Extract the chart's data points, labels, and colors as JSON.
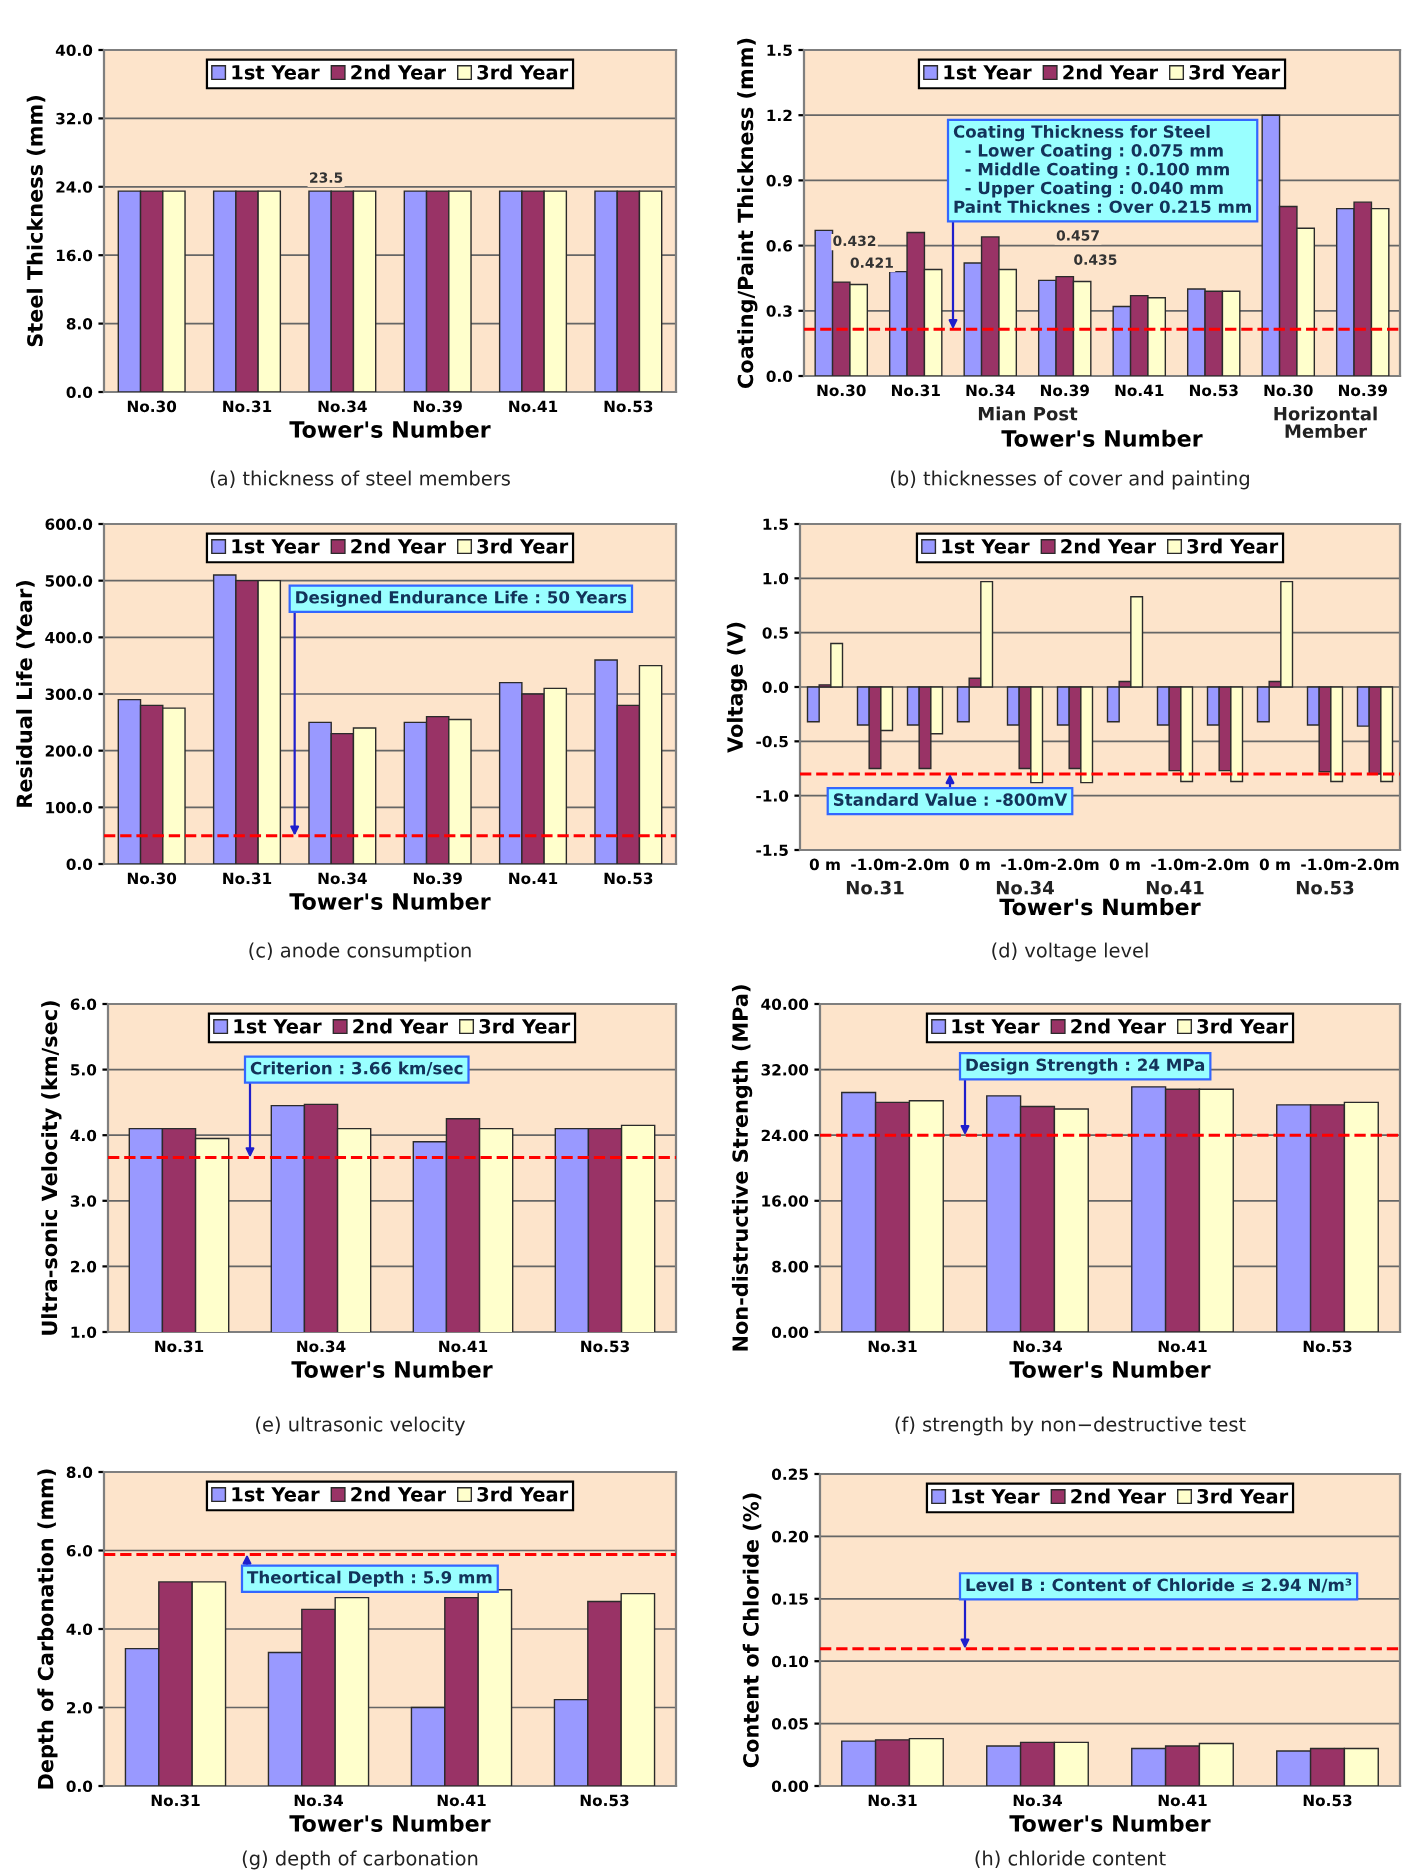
{
  "chart_data": [
    {
      "type": "bar",
      "title": "(a) thickness of steel members",
      "xlabel": "Tower's Number",
      "ylabel": "Steel Thickness (mm)",
      "categories": [
        "No.30",
        "No.31",
        "No.34",
        "No.39",
        "No.41",
        "No.53"
      ],
      "series": [
        {
          "name": "1st Year",
          "color": "#9999ff",
          "values": [
            23.5,
            23.5,
            23.5,
            23.5,
            23.5,
            23.5
          ],
          "value_labels": [
            null,
            null,
            "23.5",
            null,
            null,
            null
          ]
        },
        {
          "name": "2nd Year",
          "color": "#993366",
          "values": [
            23.5,
            23.5,
            23.5,
            23.5,
            23.5,
            23.5
          ]
        },
        {
          "name": "3rd Year",
          "color": "#ffffcc",
          "values": [
            23.5,
            23.5,
            23.5,
            23.5,
            23.5,
            23.5
          ]
        }
      ],
      "ylim": [
        0,
        40
      ],
      "yticks": [
        {
          "value": 0,
          "label": "0.0"
        },
        {
          "value": 8,
          "label": "8.0"
        },
        {
          "value": 16,
          "label": "16.0"
        },
        {
          "value": 24,
          "label": "24.0"
        },
        {
          "value": 32,
          "label": "32.0"
        },
        {
          "value": 40,
          "label": "40.0"
        }
      ],
      "grid": "y",
      "legend": "top"
    },
    {
      "type": "bar",
      "title": "(b) thicknesses of cover and painting",
      "xlabel": "Tower's Number",
      "ylabel": "Coating/Paint Thickness (mm)",
      "categories": [
        "No.30",
        "No.31",
        "No.34",
        "No.39",
        "No.41",
        "No.53",
        "No.30",
        "No.39"
      ],
      "series": [
        {
          "name": "1st Year",
          "color": "#9999ff",
          "values": [
            0.67,
            0.48,
            0.52,
            0.44,
            0.32,
            0.4,
            1.2,
            0.77
          ]
        },
        {
          "name": "2nd Year",
          "color": "#993366",
          "values": [
            0.432,
            0.66,
            0.64,
            0.457,
            0.37,
            0.39,
            0.78,
            0.8
          ],
          "value_labels": [
            "0.432",
            null,
            null,
            "0.457",
            null,
            null,
            null,
            null
          ]
        },
        {
          "name": "3rd Year",
          "color": "#ffffcc",
          "values": [
            0.421,
            0.49,
            0.49,
            0.435,
            0.36,
            0.39,
            0.68,
            0.77
          ],
          "value_labels": [
            "0.421",
            null,
            null,
            "0.435",
            null,
            null,
            null,
            null
          ]
        }
      ],
      "ylim": [
        0,
        1.5
      ],
      "yticks": [
        {
          "value": 0,
          "label": "0.0"
        },
        0.3,
        0.6,
        0.9,
        1.2,
        1.5
      ],
      "grid": "y",
      "legend": "top",
      "annotations": [
        "Mian Post",
        "Horizontal\nMember"
      ],
      "ref_lines": [
        {
          "axis": "y",
          "value": 0.215,
          "label": "Coating Thickness for Steel\n  - Lower Coating : 0.075 mm\n  - Middle Coating : 0.100 mm\n  - Upper Coating : 0.040 mm\nPaint Thicknes : Over 0.215 mm",
          "color": "#ff0000",
          "line_style": "dashed"
        }
      ]
    },
    {
      "type": "bar",
      "title": "(c) anode consumption",
      "xlabel": "Tower's Number",
      "ylabel": "Residual Life (Year)",
      "categories": [
        "No.30",
        "No.31",
        "No.34",
        "No.39",
        "No.41",
        "No.53"
      ],
      "series": [
        {
          "name": "1st Year",
          "color": "#9999ff",
          "values": [
            290,
            510,
            250,
            250,
            320,
            360
          ]
        },
        {
          "name": "2nd Year",
          "color": "#993366",
          "values": [
            280,
            500,
            230,
            260,
            300,
            280
          ]
        },
        {
          "name": "3rd Year",
          "color": "#ffffcc",
          "values": [
            275,
            500,
            240,
            255,
            310,
            350
          ]
        }
      ],
      "ylim": [
        0,
        600
      ],
      "yticks": [
        {
          "value": 0,
          "label": "0.0"
        },
        {
          "value": 100,
          "label": "100.0"
        },
        {
          "value": 200,
          "label": "200.0"
        },
        {
          "value": 300,
          "label": "300.0"
        },
        {
          "value": 400,
          "label": "400.0"
        },
        {
          "value": 500,
          "label": "500.0"
        },
        {
          "value": 600,
          "label": "600.0"
        }
      ],
      "grid": "y",
      "legend": "top",
      "ref_lines": [
        {
          "axis": "y",
          "value": 50,
          "label": "Designed Endurance Life : 50 Years",
          "color": "#ff0000",
          "line_style": "dashed"
        }
      ]
    },
    {
      "type": "bar",
      "title": "(d) voltage level",
      "xlabel": "Tower's Number",
      "ylabel": "Voltage (V)",
      "categories": [
        "0 m",
        "-1.0m",
        "-2.0m",
        "0 m",
        "-1.0m",
        "-2.0m",
        "0 m",
        "-1.0m",
        "-2.0m",
        "0 m",
        "-1.0m",
        "-2.0m"
      ],
      "series": [
        {
          "name": "1st Year",
          "color": "#9999ff",
          "values": [
            -0.32,
            -0.35,
            -0.35,
            -0.32,
            -0.35,
            -0.35,
            -0.32,
            -0.35,
            -0.35,
            -0.32,
            -0.35,
            -0.36
          ]
        },
        {
          "name": "2nd Year",
          "color": "#993366",
          "values": [
            0.02,
            -0.75,
            -0.75,
            0.08,
            -0.75,
            -0.75,
            0.05,
            -0.77,
            -0.77,
            0.05,
            -0.78,
            -0.8
          ]
        },
        {
          "name": "3rd Year",
          "color": "#ffffcc",
          "values": [
            0.4,
            -0.4,
            -0.43,
            0.97,
            -0.88,
            -0.88,
            0.83,
            -0.87,
            -0.87,
            0.97,
            -0.87,
            -0.87
          ]
        }
      ],
      "ylim": [
        -1.5,
        1.5
      ],
      "yticks": [
        {
          "value": -1.5,
          "label": "-1.5"
        },
        {
          "value": -1.0,
          "label": "-1.0"
        },
        {
          "value": -0.5,
          "label": "-0.5"
        },
        {
          "value": 0,
          "label": "0.0"
        },
        0.5,
        {
          "value": 1,
          "label": "1.0"
        },
        1.5
      ],
      "grid": "y",
      "legend": "top",
      "annotations": [
        "No.31",
        "No.34",
        "No.41",
        "No.53"
      ],
      "ref_lines": [
        {
          "axis": "y",
          "value": -0.8,
          "label": "Standard Value : -800mV",
          "color": "#ff0000",
          "line_style": "dashed"
        }
      ]
    },
    {
      "type": "bar",
      "title": "(e) ultrasonic velocity",
      "xlabel": "Tower's Number",
      "ylabel": "Ultra-sonic Velocity (km/sec)",
      "categories": [
        "No.31",
        "No.34",
        "No.41",
        "No.53"
      ],
      "series": [
        {
          "name": "1st Year",
          "color": "#9999ff",
          "values": [
            4.1,
            4.45,
            3.9,
            4.1
          ]
        },
        {
          "name": "2nd Year",
          "color": "#993366",
          "values": [
            4.1,
            4.47,
            4.25,
            4.1
          ]
        },
        {
          "name": "3rd Year",
          "color": "#ffffcc",
          "values": [
            3.95,
            4.1,
            4.1,
            4.15
          ]
        }
      ],
      "ylim": [
        1,
        6
      ],
      "yticks": [
        {
          "value": 1,
          "label": "1.0"
        },
        {
          "value": 2,
          "label": "2.0"
        },
        {
          "value": 3,
          "label": "3.0"
        },
        {
          "value": 4,
          "label": "4.0"
        },
        {
          "value": 5,
          "label": "5.0"
        },
        {
          "value": 6,
          "label": "6.0"
        }
      ],
      "grid": "y",
      "legend": "top",
      "ref_lines": [
        {
          "axis": "y",
          "value": 3.66,
          "label": "Criterion : 3.66 km/sec",
          "color": "#ff0000",
          "line_style": "dashed"
        }
      ]
    },
    {
      "type": "bar",
      "title": "(f) strength by non−destructive test",
      "xlabel": "Tower's Number",
      "ylabel": "Non-distructive Strength (MPa)",
      "categories": [
        "No.31",
        "No.34",
        "No.41",
        "No.53"
      ],
      "series": [
        {
          "name": "1st Year",
          "color": "#9999ff",
          "values": [
            29.2,
            28.8,
            29.9,
            27.7
          ]
        },
        {
          "name": "2nd Year",
          "color": "#993366",
          "values": [
            28.0,
            27.5,
            29.6,
            27.7
          ]
        },
        {
          "name": "3rd Year",
          "color": "#ffffcc",
          "values": [
            28.2,
            27.2,
            29.6,
            28.0
          ]
        }
      ],
      "ylim": [
        0,
        40
      ],
      "yticks": [
        {
          "value": 0,
          "label": "0.00"
        },
        {
          "value": 8,
          "label": "8.00"
        },
        {
          "value": 16,
          "label": "16.00"
        },
        {
          "value": 24,
          "label": "24.00"
        },
        {
          "value": 32,
          "label": "32.00"
        },
        {
          "value": 40,
          "label": "40.00"
        }
      ],
      "grid": "y",
      "legend": "top",
      "ref_lines": [
        {
          "axis": "y",
          "value": 24,
          "label": "Design Strength : 24 MPa",
          "color": "#ff0000",
          "line_style": "dashed"
        }
      ]
    },
    {
      "type": "bar",
      "title": "(g) depth of carbonation",
      "xlabel": "Tower's Number",
      "ylabel": "Depth of Carbonation (mm)",
      "categories": [
        "No.31",
        "No.34",
        "No.41",
        "No.53"
      ],
      "series": [
        {
          "name": "1st Year",
          "color": "#9999ff",
          "values": [
            3.5,
            3.4,
            2.0,
            2.2
          ]
        },
        {
          "name": "2nd Year",
          "color": "#993366",
          "values": [
            5.2,
            4.5,
            4.8,
            4.7
          ]
        },
        {
          "name": "3rd Year",
          "color": "#ffffcc",
          "values": [
            5.2,
            4.8,
            5.0,
            4.9
          ]
        }
      ],
      "ylim": [
        0,
        8
      ],
      "yticks": [
        {
          "value": 0,
          "label": "0.0"
        },
        {
          "value": 2,
          "label": "2.0"
        },
        {
          "value": 4,
          "label": "4.0"
        },
        {
          "value": 6,
          "label": "6.0"
        },
        {
          "value": 8,
          "label": "8.0"
        }
      ],
      "grid": "y",
      "legend": "top",
      "ref_lines": [
        {
          "axis": "y",
          "value": 5.9,
          "label": "Theortical Depth : 5.9 mm",
          "color": "#ff0000",
          "line_style": "dashed"
        }
      ]
    },
    {
      "type": "bar",
      "title": "(h) chloride content",
      "xlabel": "Tower's Number",
      "ylabel": "Content of Chloride (%)",
      "categories": [
        "No.31",
        "No.34",
        "No.41",
        "No.53"
      ],
      "series": [
        {
          "name": "1st Year",
          "color": "#9999ff",
          "values": [
            0.036,
            0.032,
            0.03,
            0.028
          ]
        },
        {
          "name": "2nd Year",
          "color": "#993366",
          "values": [
            0.037,
            0.035,
            0.032,
            0.03
          ]
        },
        {
          "name": "3rd Year",
          "color": "#ffffcc",
          "values": [
            0.038,
            0.035,
            0.034,
            0.03
          ]
        }
      ],
      "ylim": [
        0,
        0.25
      ],
      "yticks": [
        {
          "value": 0,
          "label": "0.00"
        },
        0.05,
        {
          "value": 0.1,
          "label": "0.10"
        },
        0.15,
        {
          "value": 0.2,
          "label": "0.20"
        },
        0.25
      ],
      "grid": "y",
      "legend": "top",
      "ref_lines": [
        {
          "axis": "y",
          "value": 0.11,
          "label": "Level B : Content of Chloride ≤ 2.94 N/m³",
          "color": "#ff0000",
          "line_style": "dashed"
        }
      ]
    }
  ]
}
